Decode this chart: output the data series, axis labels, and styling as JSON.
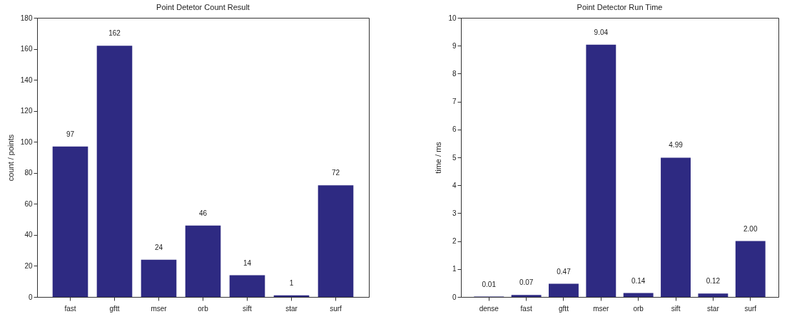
{
  "chart_data": [
    {
      "type": "bar",
      "title": "Point Detetor Count Result",
      "ylabel": "count / points",
      "categories": [
        "fast",
        "gftt",
        "mser",
        "orb",
        "sift",
        "star",
        "surf"
      ],
      "values": [
        97,
        162,
        24,
        46,
        14,
        1,
        72
      ],
      "color": "#2e2a82",
      "ylim": [
        0,
        180
      ],
      "yticks": [
        0,
        20,
        40,
        60,
        80,
        100,
        120,
        140,
        160,
        180
      ],
      "data_labels": true,
      "grid": false
    },
    {
      "type": "bar",
      "title": "Point Detector Run Time",
      "ylabel": "time / ms",
      "categories": [
        "dense",
        "fast",
        "gftt",
        "mser",
        "orb",
        "sift",
        "star",
        "surf"
      ],
      "values": [
        0.01,
        0.07,
        0.47,
        9.04,
        0.14,
        4.99,
        0.12,
        2.0
      ],
      "value_labels": [
        "0.01",
        "0.07",
        "0.47",
        "9.04",
        "0.14",
        "4.99",
        "0.12",
        "2.00"
      ],
      "color": "#2e2a82",
      "ylim": [
        0,
        10
      ],
      "yticks": [
        0,
        1,
        2,
        3,
        4,
        5,
        6,
        7,
        8,
        9,
        10
      ],
      "grid": false
    }
  ]
}
